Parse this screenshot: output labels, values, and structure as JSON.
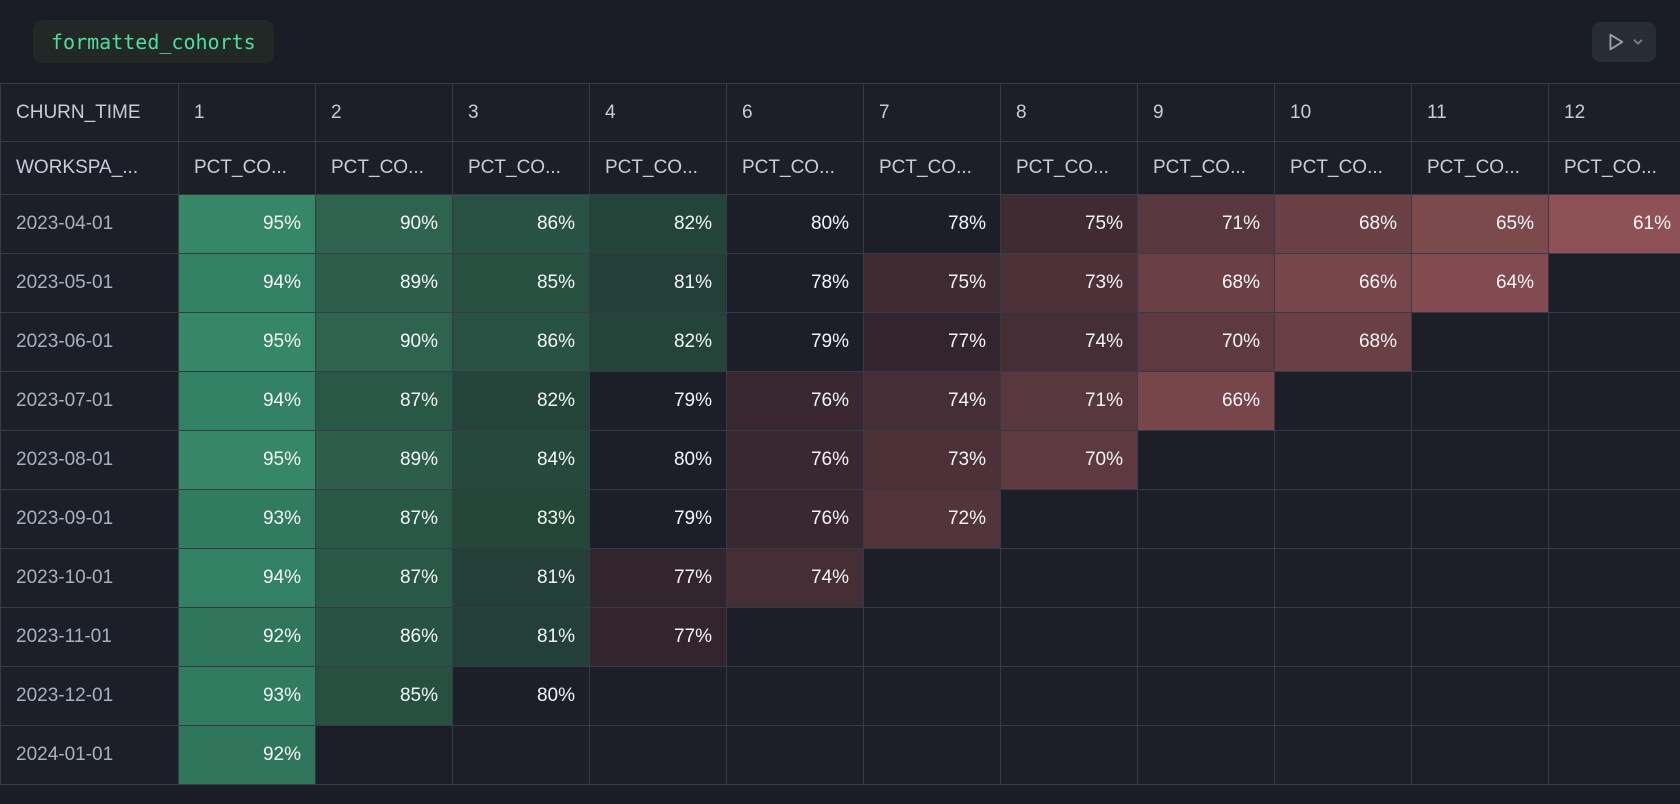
{
  "title": {
    "name": "formatted_cohorts"
  },
  "run_button": {
    "play_icon": "run-play-icon",
    "chevron_icon": "chevron-down-icon"
  },
  "table": {
    "corner_header": "CHURN_TIME",
    "row_header_label": "WORKSPA_...",
    "metric_label": "PCT_CO...",
    "period_columns": [
      "1",
      "2",
      "3",
      "4",
      "6",
      "7",
      "8",
      "9",
      "10",
      "11",
      "12"
    ],
    "rows": [
      {
        "date": "2023-04-01",
        "values": [
          95,
          90,
          86,
          82,
          80,
          78,
          75,
          71,
          68,
          65,
          61
        ]
      },
      {
        "date": "2023-05-01",
        "values": [
          94,
          89,
          85,
          81,
          78,
          75,
          73,
          68,
          66,
          64
        ]
      },
      {
        "date": "2023-06-01",
        "values": [
          95,
          90,
          86,
          82,
          79,
          77,
          74,
          70,
          68
        ]
      },
      {
        "date": "2023-07-01",
        "values": [
          94,
          87,
          82,
          79,
          76,
          74,
          71,
          66
        ]
      },
      {
        "date": "2023-08-01",
        "values": [
          95,
          89,
          84,
          80,
          76,
          73,
          70
        ]
      },
      {
        "date": "2023-09-01",
        "values": [
          93,
          87,
          83,
          79,
          76,
          72
        ]
      },
      {
        "date": "2023-10-01",
        "values": [
          94,
          87,
          81,
          77,
          74
        ]
      },
      {
        "date": "2023-11-01",
        "values": [
          92,
          86,
          81,
          77
        ]
      },
      {
        "date": "2023-12-01",
        "values": [
          93,
          85,
          80
        ]
      },
      {
        "date": "2024-01-01",
        "values": [
          92
        ]
      }
    ],
    "value_suffix": "%"
  },
  "colors": {
    "page_bg": "#1a1d25",
    "cell_bg": "#1c1f28",
    "grid_border": "#373b49",
    "chip_bg": "#212826",
    "chip_text": "#4edc9f",
    "header_text": "#c7ccd7",
    "date_text": "#a9b0bf",
    "value_text": "#f3f5f8",
    "button_bg": "#282c35",
    "button_icon": "#9ba1ae",
    "button_chevron": "#7d8391",
    "value_colors": {
      "95": "#358768",
      "94": "#338164",
      "93": "#317c60",
      "92": "#2f765c",
      "90": "#2e6350",
      "89": "#2d5e4b",
      "87": "#2a5846",
      "86": "#285344",
      "85": "#275040",
      "84": "#254a3d",
      "83": "#244738",
      "82": "#24443a",
      "81": "#233f37",
      "80": "#1c1f28",
      "79": "#1c1f28",
      "78": "#1c1f28",
      "77": "#33252d",
      "76": "#3a2830",
      "75": "#402b33",
      "74": "#462e36",
      "73": "#4c3138",
      "72": "#52343b",
      "71": "#58373e",
      "70": "#5e3a40",
      "68": "#6a4045",
      "66": "#76464a",
      "65": "#7c494d",
      "64": "#824b4f",
      "61": "#8e5156"
    }
  }
}
